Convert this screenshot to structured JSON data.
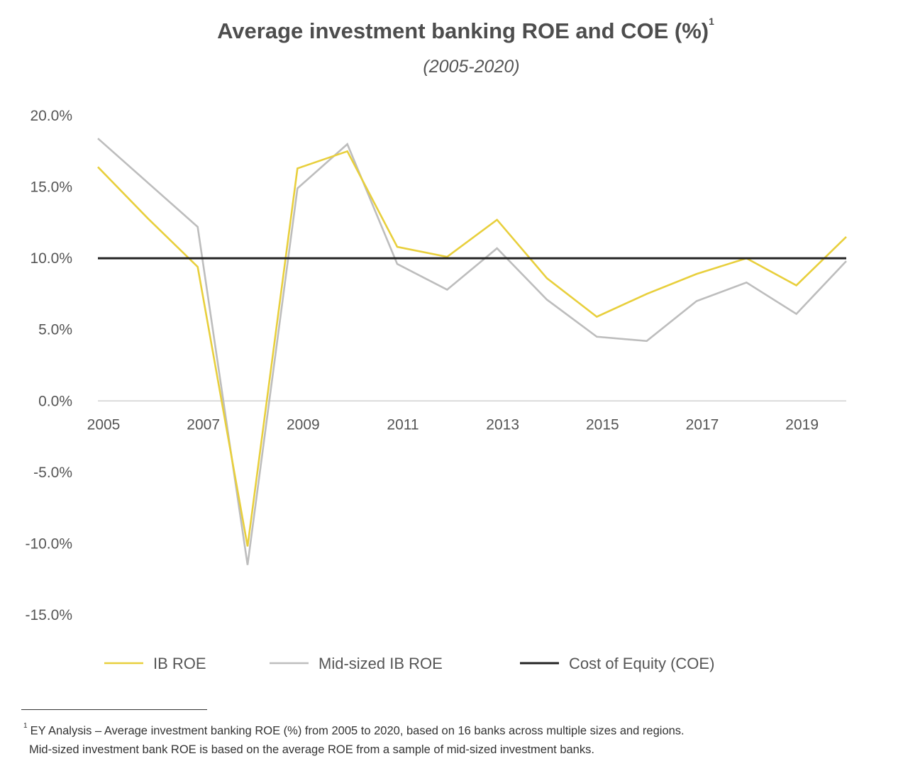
{
  "title": "Average investment banking ROE and COE (%)",
  "title_sup": "1",
  "subtitle": "(2005-2020)",
  "footnote": {
    "marker": "1",
    "line1": "EY Analysis – Average investment banking ROE (%) from 2005 to 2020, based on 16 banks across multiple sizes and regions.",
    "line2": "Mid-sized investment bank ROE is based on the average ROE from a sample of mid-sized investment banks."
  },
  "chart_data": {
    "type": "line",
    "x": [
      2005,
      2006,
      2007,
      2008,
      2009,
      2010,
      2011,
      2012,
      2013,
      2014,
      2015,
      2016,
      2017,
      2018,
      2019,
      2020
    ],
    "x_tick_values": [
      2005,
      2007,
      2009,
      2011,
      2013,
      2015,
      2017,
      2019
    ],
    "x_tick_labels": [
      "2005",
      "2007",
      "2009",
      "2011",
      "2013",
      "2015",
      "2017",
      "2019"
    ],
    "y_tick_values": [
      20,
      15,
      10,
      5,
      0,
      -5,
      -10,
      -15
    ],
    "y_tick_labels": [
      "20.0%",
      "15.0%",
      "10.0%",
      "5.0%",
      "0.0%",
      "-5.0%",
      "-10.0%",
      "-15.0%"
    ],
    "ylim": [
      -15,
      20
    ],
    "xlim": [
      2005,
      2020
    ],
    "grid": false,
    "legend_position": "bottom",
    "series": [
      {
        "name": "IB ROE",
        "color": "#e8cf3c",
        "values": [
          16.4,
          12.8,
          9.4,
          -10.2,
          16.3,
          17.5,
          10.8,
          10.1,
          12.7,
          8.6,
          5.9,
          7.5,
          8.9,
          10.0,
          8.1,
          11.5
        ]
      },
      {
        "name": "Mid-sized IB ROE",
        "color": "#bdbdbd",
        "values": [
          18.4,
          15.3,
          12.2,
          -11.5,
          14.9,
          18.0,
          9.6,
          7.8,
          10.7,
          7.1,
          4.5,
          4.2,
          7.0,
          8.3,
          6.1,
          9.8
        ]
      },
      {
        "name": "Cost of Equity (COE)",
        "color": "#222222",
        "values": [
          10,
          10,
          10,
          10,
          10,
          10,
          10,
          10,
          10,
          10,
          10,
          10,
          10,
          10,
          10,
          10
        ]
      }
    ]
  }
}
